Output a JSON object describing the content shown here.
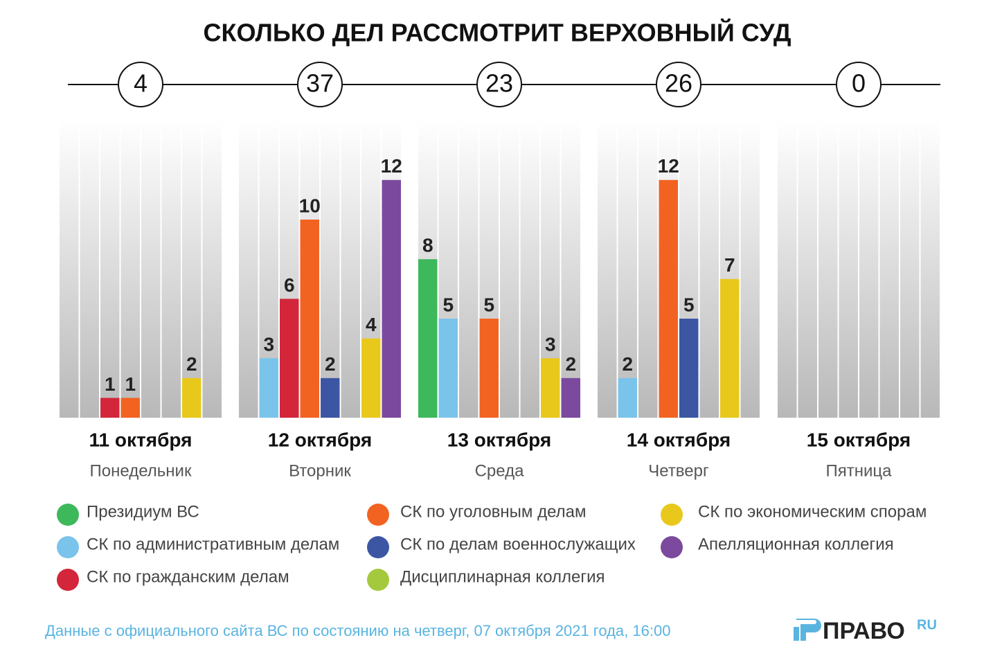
{
  "chart_data": {
    "type": "bar",
    "title": "СКОЛЬКО ДЕЛ РАССМОТРИТ ВЕРХОВНЫЙ СУД",
    "categories": [
      "11 октября",
      "12 октября",
      "13 октября",
      "14 октября",
      "15 октября"
    ],
    "weekdays": [
      "Понедельник",
      "Вторник",
      "Среда",
      "Четверг",
      "Пятница"
    ],
    "totals": [
      4,
      37,
      23,
      26,
      0
    ],
    "series": [
      {
        "name": "Президиум ВС",
        "color": "#3db85a",
        "values": [
          0,
          0,
          8,
          0,
          0
        ]
      },
      {
        "name": "СК по административным делам",
        "color": "#7ac3eb",
        "values": [
          0,
          3,
          5,
          2,
          0
        ]
      },
      {
        "name": "СК по гражданским делам",
        "color": "#d3263a",
        "values": [
          1,
          6,
          0,
          0,
          0
        ]
      },
      {
        "name": "СК по уголовным делам",
        "color": "#f26322",
        "values": [
          1,
          10,
          5,
          12,
          0
        ]
      },
      {
        "name": "СК по делам военнослужащих",
        "color": "#3c56a3",
        "values": [
          0,
          2,
          0,
          5,
          0
        ]
      },
      {
        "name": "Дисциплинарная коллегия",
        "color": "#a5c93d",
        "values": [
          0,
          0,
          0,
          0,
          0
        ]
      },
      {
        "name": "СК по экономическим спорам",
        "color": "#e9c81c",
        "values": [
          2,
          4,
          3,
          7,
          0
        ]
      },
      {
        "name": "Апелляционная коллегия",
        "color": "#7b4a9e",
        "values": [
          0,
          12,
          2,
          0,
          0
        ]
      }
    ],
    "ylim": [
      0,
      15
    ]
  },
  "source": "Данные с официального сайта ВС по состоянию на четверг, 07 октября 2021 года, 16:00",
  "logo": {
    "name": "ПРАВО",
    "suffix": "RU"
  }
}
